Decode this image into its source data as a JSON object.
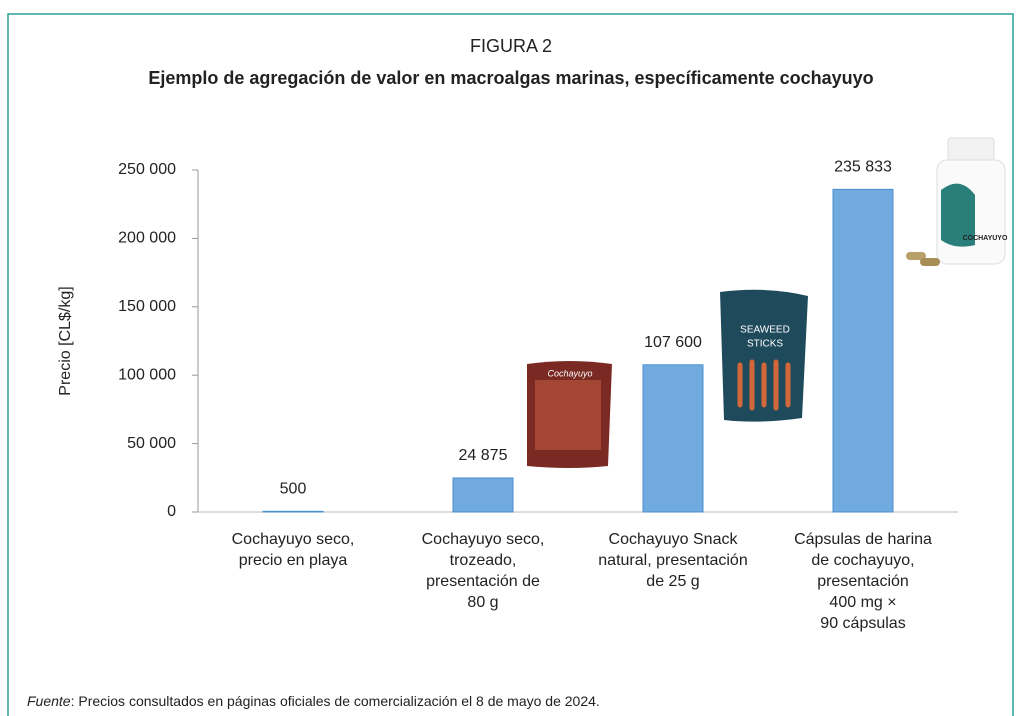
{
  "chart_data": {
    "type": "bar",
    "title": "FIGURA 2",
    "subtitle": "Ejemplo de agregación de valor en macroalgas marinas, específicamente cochayuyo",
    "y_label": "Precio [CL$/kg]",
    "categories": [
      "Cochayuyo seco,\nprecio en playa",
      "Cochayuyo seco,\ntrozeado,\npresentación de\n80 g",
      "Cochayuyo Snack\nnatural, presentación\nde 25 g",
      "Cápsulas de harina\nde cochayuyo,\npresentación\n400 mg ×\n90 cápsulas"
    ],
    "values": [
      500,
      24875,
      107600,
      235833
    ],
    "value_labels": [
      "500",
      "24 875",
      "107 600",
      "235 833"
    ],
    "color": "#70aadf",
    "ylim": [
      0,
      250000
    ],
    "yticks": [
      0,
      {
        "value": 50000,
        "label": "50 000"
      },
      {
        "value": 100000,
        "label": "100 000"
      },
      {
        "value": 150000,
        "label": "150 000"
      },
      {
        "value": 200000,
        "label": "200 000"
      },
      {
        "value": 250000,
        "label": "250 000"
      }
    ],
    "source": {
      "label": "Fuente",
      "text": ": Precios consultados en páginas oficiales de comercialización el 8 de mayo de 2024."
    }
  }
}
